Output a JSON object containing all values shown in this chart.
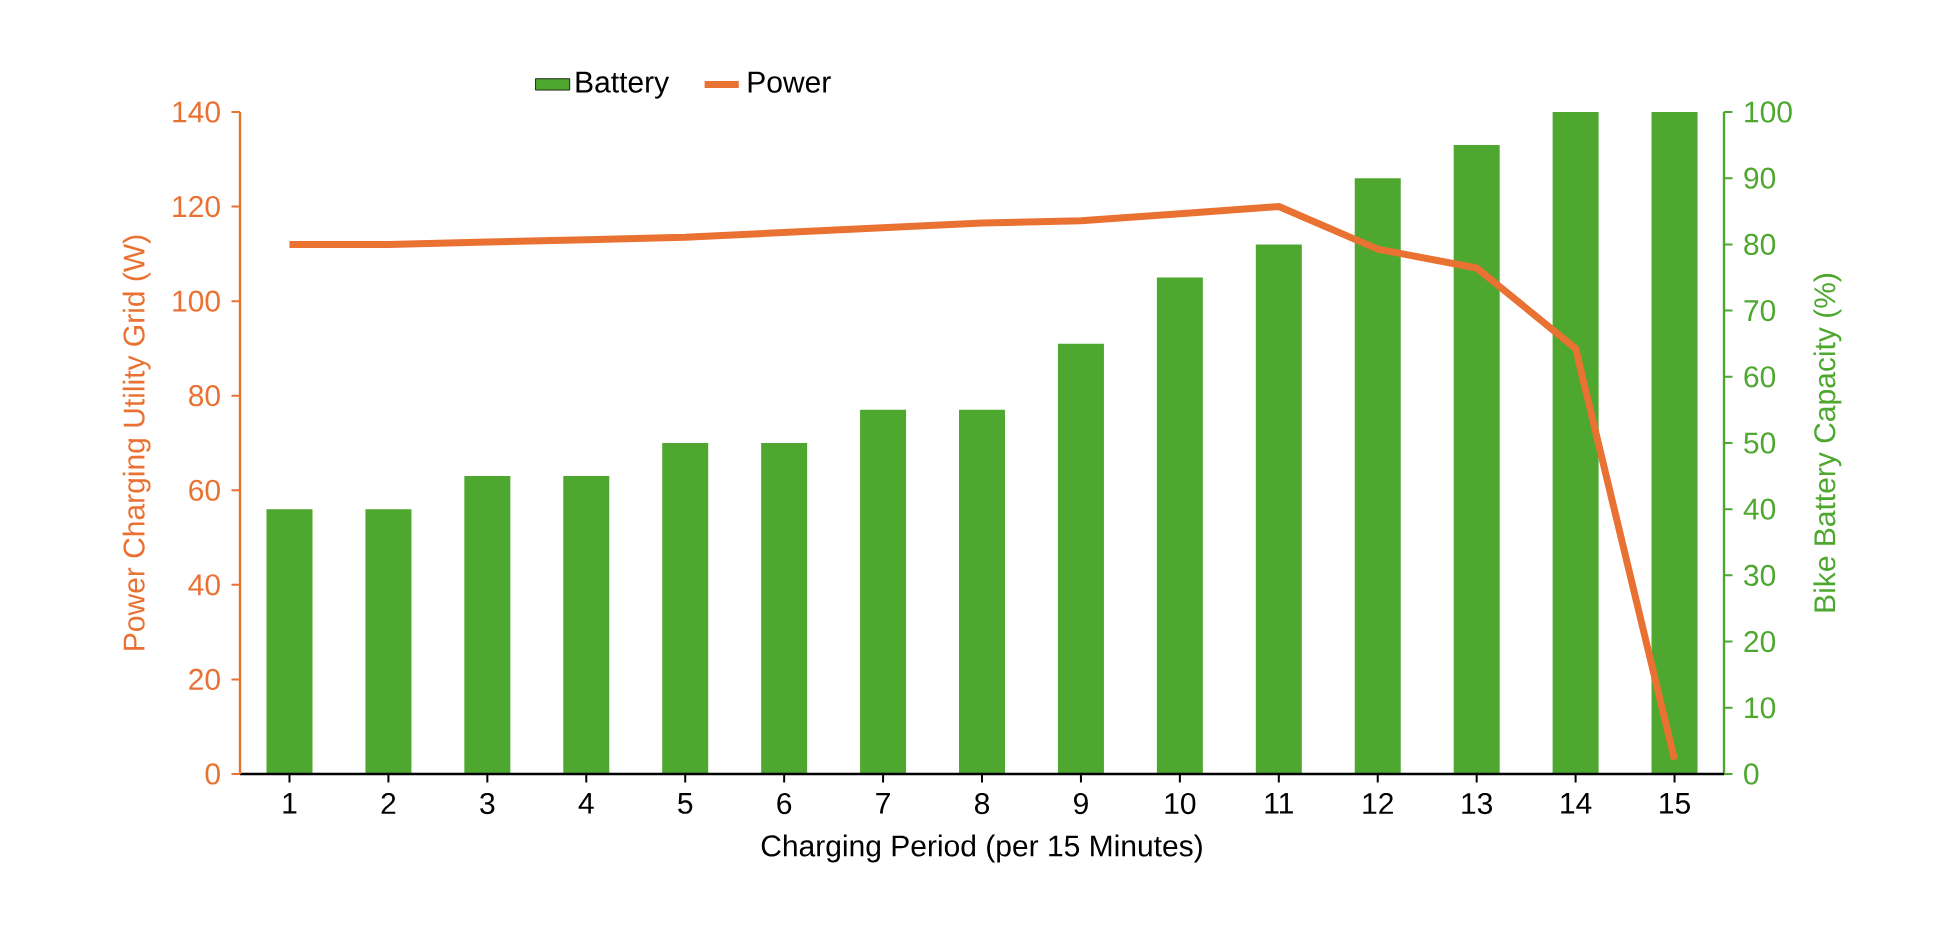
{
  "chart_data": {
    "type": "bar",
    "categories": [
      "1",
      "2",
      "3",
      "4",
      "5",
      "6",
      "7",
      "8",
      "9",
      "10",
      "11",
      "12",
      "13",
      "14",
      "15"
    ],
    "series": [
      {
        "name": "Battery",
        "color": "#4ea72e",
        "axis": "y2",
        "values": [
          40,
          40,
          45,
          45,
          50,
          50,
          55,
          55,
          65,
          75,
          80,
          90,
          95,
          100,
          100
        ]
      },
      {
        "name": "Power",
        "type": "line",
        "color": "#e97132",
        "values": [
          112,
          112,
          112.5,
          113,
          113.5,
          114.5,
          115.5,
          116.5,
          117,
          118.5,
          120,
          111,
          107,
          90,
          3
        ]
      }
    ],
    "xlabel": "Charging Period (per 15 Minutes)",
    "ylabel": "Power Charging Utility Grid (W)",
    "y2label": "Bike Battery Capacity (%)",
    "ylim": [
      0,
      140
    ],
    "yticks": [
      0,
      20,
      40,
      60,
      80,
      100,
      120,
      140
    ],
    "y2lim": [
      0,
      100
    ],
    "y2ticks": [
      0,
      10,
      20,
      30,
      40,
      50,
      60,
      70,
      80,
      90,
      100
    ],
    "legend": "top",
    "marker": "none"
  }
}
